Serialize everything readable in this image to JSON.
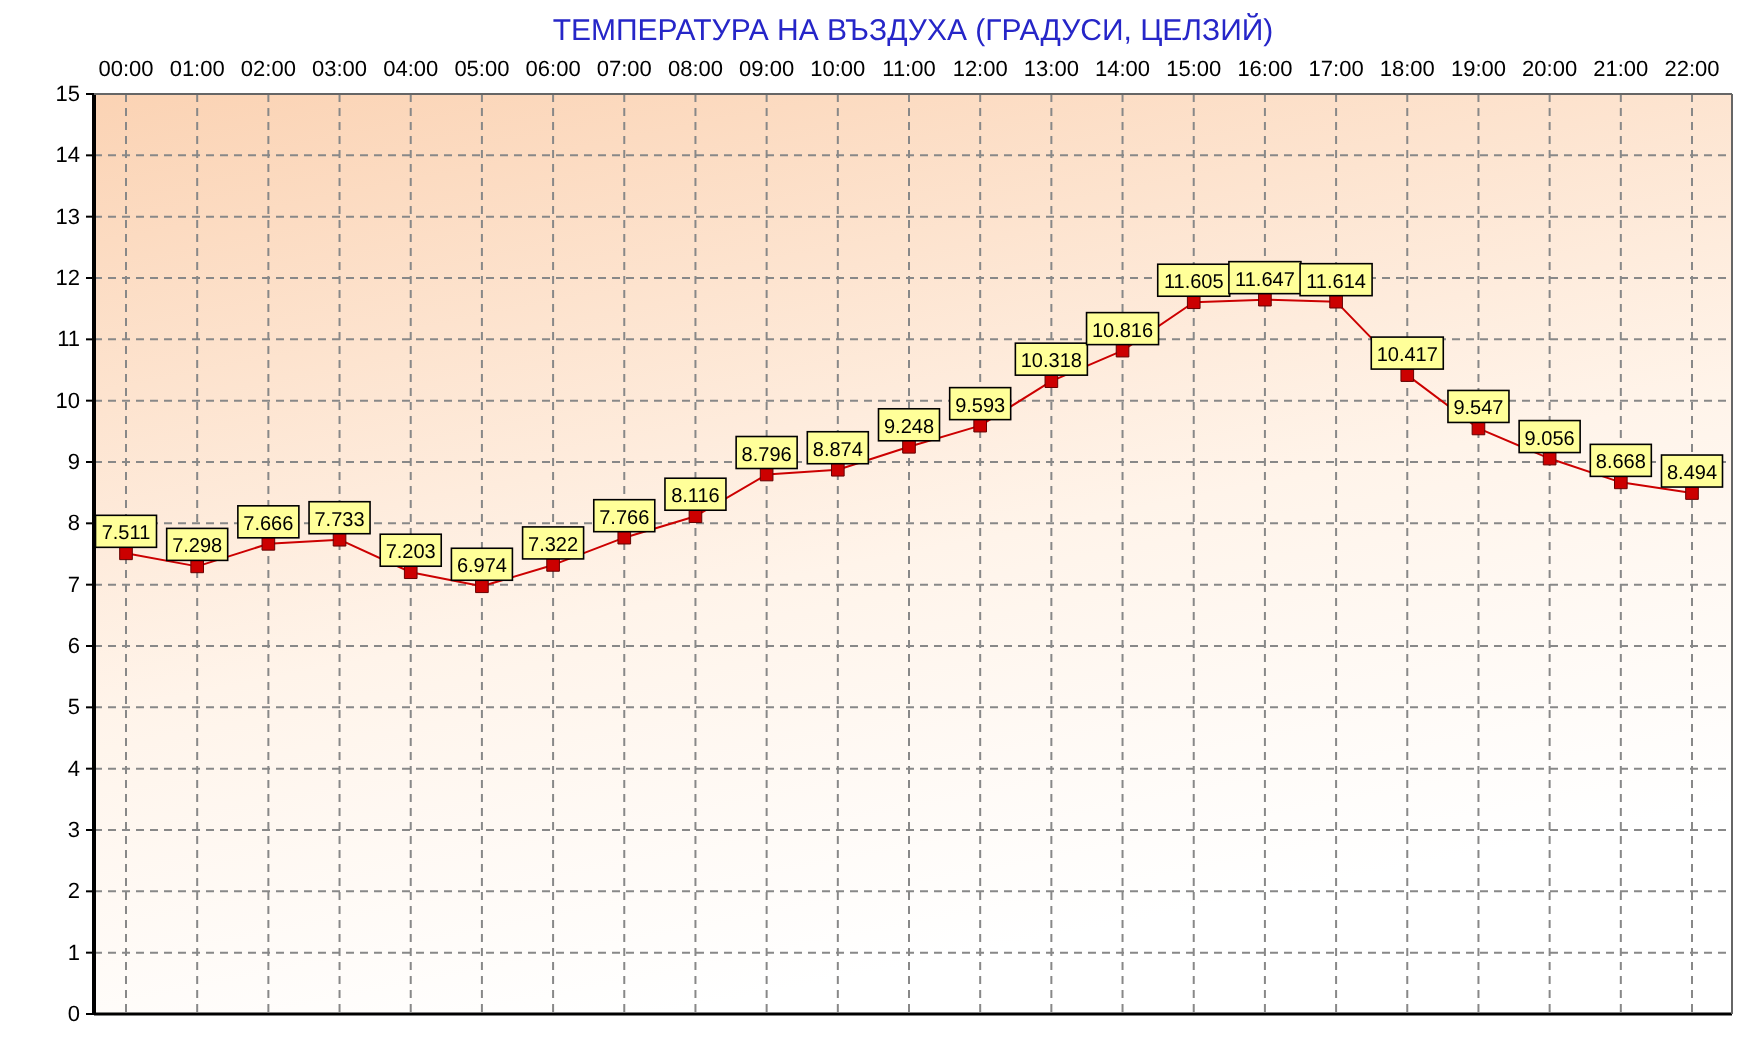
{
  "chart_data": {
    "type": "line",
    "title": "ТЕМПЕРАТУРА НА ВЪЗДУХА  (ГРАДУСИ, ЦЕЛЗИЙ)",
    "categories": [
      "00:00",
      "01:00",
      "02:00",
      "03:00",
      "04:00",
      "05:00",
      "06:00",
      "07:00",
      "08:00",
      "09:00",
      "10:00",
      "11:00",
      "12:00",
      "13:00",
      "14:00",
      "15:00",
      "16:00",
      "17:00",
      "18:00",
      "19:00",
      "20:00",
      "21:00",
      "22:00"
    ],
    "series": [
      {
        "color": "#cc0000",
        "values": [
          7.511,
          7.298,
          7.666,
          7.733,
          7.203,
          6.974,
          7.322,
          7.766,
          8.116,
          8.796,
          8.874,
          9.248,
          9.593,
          10.318,
          10.816,
          11.605,
          11.647,
          11.614,
          10.417,
          9.547,
          9.056,
          8.668,
          8.494
        ]
      }
    ],
    "ylim": [
      0,
      15
    ],
    "yticks": [
      0,
      1,
      2,
      3,
      4,
      5,
      6,
      7,
      8,
      9,
      10,
      11,
      12,
      13,
      14,
      15
    ],
    "grid": true,
    "marker": "square",
    "line_style": "solid",
    "data_labels": true
  }
}
